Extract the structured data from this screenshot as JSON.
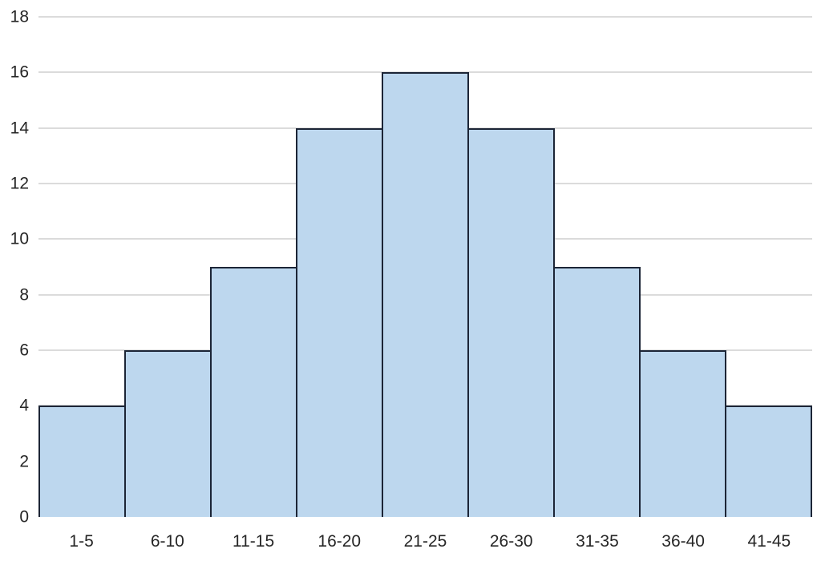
{
  "chart_data": {
    "type": "bar",
    "subtype": "histogram",
    "title": "",
    "xlabel": "",
    "ylabel": "",
    "categories": [
      "1-5",
      "6-10",
      "11-15",
      "16-20",
      "21-25",
      "26-30",
      "31-35",
      "36-40",
      "41-45"
    ],
    "values": [
      4,
      6,
      9,
      14,
      16,
      14,
      9,
      6,
      4
    ],
    "ylim": [
      0,
      18
    ],
    "ytick_step": 2,
    "ytick_labels": [
      "0",
      "2",
      "4",
      "6",
      "8",
      "10",
      "12",
      "14",
      "16",
      "18"
    ],
    "bar_gap": 0,
    "grid": true,
    "legend": false,
    "colors": {
      "bar_fill": "#BDD7EE",
      "bar_border": "#1C2536",
      "gridline": "#DBDBDB",
      "text": "#262626",
      "background": "#FFFFFF"
    }
  }
}
